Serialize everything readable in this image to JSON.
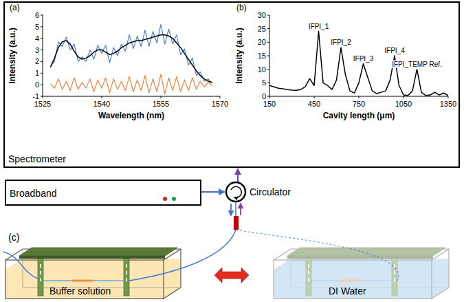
{
  "chart_data": [
    {
      "type": "line",
      "panel_label": "(a)",
      "x_label": "Wavelength (nm)",
      "y_label": "Intensity (a.u.)",
      "x": [
        1527,
        1528,
        1529,
        1530,
        1531,
        1532,
        1533,
        1534,
        1535,
        1536,
        1537,
        1538,
        1539,
        1540,
        1541,
        1542,
        1543,
        1544,
        1545,
        1546,
        1547,
        1548,
        1549,
        1550,
        1551,
        1552,
        1553,
        1554,
        1555,
        1556,
        1557,
        1558,
        1559,
        1560,
        1561,
        1562,
        1563,
        1564,
        1565,
        1566,
        1567,
        1568
      ],
      "series": [
        {
          "color": "#ef7f3a",
          "values": [
            0.1,
            -0.3,
            0.5,
            -0.4,
            0.3,
            -0.5,
            0.6,
            -0.4,
            0.2,
            -0.3,
            0.5,
            -0.6,
            0.4,
            -0.3,
            0.6,
            -0.7,
            0.5,
            -0.4,
            0.3,
            -0.5,
            0.7,
            -0.6,
            0.4,
            -0.5,
            0.8,
            -0.7,
            0.5,
            -0.6,
            0.9,
            -0.8,
            0.6,
            -0.5,
            0.7,
            -0.6,
            0.4,
            -0.5,
            0.6,
            -0.4,
            0.3,
            -0.2,
            0.2,
            -0.1
          ]
        },
        {
          "color": "#4a7fd4",
          "values": [
            1.6,
            2.0,
            3.7,
            3.3,
            4.1,
            3.0,
            3.5,
            2.0,
            2.4,
            2.0,
            3.0,
            2.2,
            3.4,
            2.7,
            3.4,
            1.9,
            3.2,
            2.5,
            3.5,
            2.9,
            4.3,
            3.1,
            4.2,
            3.3,
            4.7,
            3.3,
            4.6,
            3.6,
            5.2,
            3.5,
            4.8,
            3.5,
            4.3,
            2.6,
            3.1,
            1.7,
            2.3,
            0.8,
            1.1,
            0.3,
            0.5,
            0.1
          ]
        },
        {
          "color": "#000000",
          "values": [
            1.5,
            2.3,
            3.2,
            3.7,
            3.8,
            3.5,
            2.9,
            2.4,
            2.2,
            2.3,
            2.5,
            2.8,
            3.0,
            3.0,
            2.8,
            2.6,
            2.7,
            2.9,
            3.2,
            3.4,
            3.6,
            3.7,
            3.8,
            3.8,
            3.9,
            4.0,
            4.1,
            4.2,
            4.3,
            4.3,
            4.2,
            4.0,
            3.6,
            3.2,
            2.7,
            2.2,
            1.7,
            1.2,
            0.8,
            0.5,
            0.3,
            0.2
          ]
        }
      ],
      "xlim": [
        1525,
        1570
      ],
      "xticks": [
        1525,
        1540,
        1555,
        1570
      ],
      "ylim": [
        -1,
        6
      ],
      "yticks": [
        -1,
        0,
        1,
        2,
        3,
        4,
        5,
        6
      ],
      "grid": false
    },
    {
      "type": "line",
      "panel_label": "(b)",
      "x_label": "Cavity length (μm)",
      "y_label": "Intensity (a.u.)",
      "x": [
        150,
        180,
        210,
        240,
        270,
        300,
        330,
        360,
        390,
        420,
        450,
        480,
        510,
        540,
        570,
        600,
        630,
        660,
        690,
        720,
        750,
        780,
        810,
        840,
        870,
        900,
        930,
        960,
        990,
        1020,
        1050,
        1080,
        1110,
        1140,
        1170,
        1200,
        1230,
        1260,
        1290,
        1320,
        1350
      ],
      "series": [
        {
          "color": "#000000",
          "values": [
            4,
            3.5,
            3,
            2.8,
            2.5,
            2.3,
            2.2,
            2.5,
            3.5,
            6.5,
            4,
            24,
            5,
            4,
            2.5,
            6,
            18,
            8,
            2,
            1.2,
            5,
            12,
            7,
            2,
            1,
            1.5,
            2,
            6,
            15,
            4,
            0.5,
            0.3,
            2,
            10,
            1.5,
            0.3,
            0.5,
            1.5,
            0.5,
            1.2,
            0.3
          ]
        }
      ],
      "annotations": [
        {
          "text": "IFPI_1",
          "x": 480,
          "y": 24
        },
        {
          "text": "IFPI_2",
          "x": 630,
          "y": 18
        },
        {
          "text": "IFPI_3",
          "x": 780,
          "y": 12
        },
        {
          "text": "IFPI_4",
          "x": 990,
          "y": 15
        },
        {
          "text": "IFPI_TEMP Ref.",
          "x": 1140,
          "y": 10
        }
      ],
      "xlim": [
        150,
        1350
      ],
      "xticks": [
        150,
        450,
        750,
        1050,
        1350
      ],
      "ylim": [
        0,
        30
      ],
      "yticks": [
        0,
        5,
        10,
        15,
        20,
        25,
        30
      ],
      "grid": false
    }
  ],
  "diagram": {
    "frame_label": "Spectrometer",
    "source_label": "Broadband",
    "circulator_label": "Circulator",
    "panel_label": "(c)",
    "left_tank_label": "Buffer solution",
    "right_tank_label": "DI Water"
  }
}
